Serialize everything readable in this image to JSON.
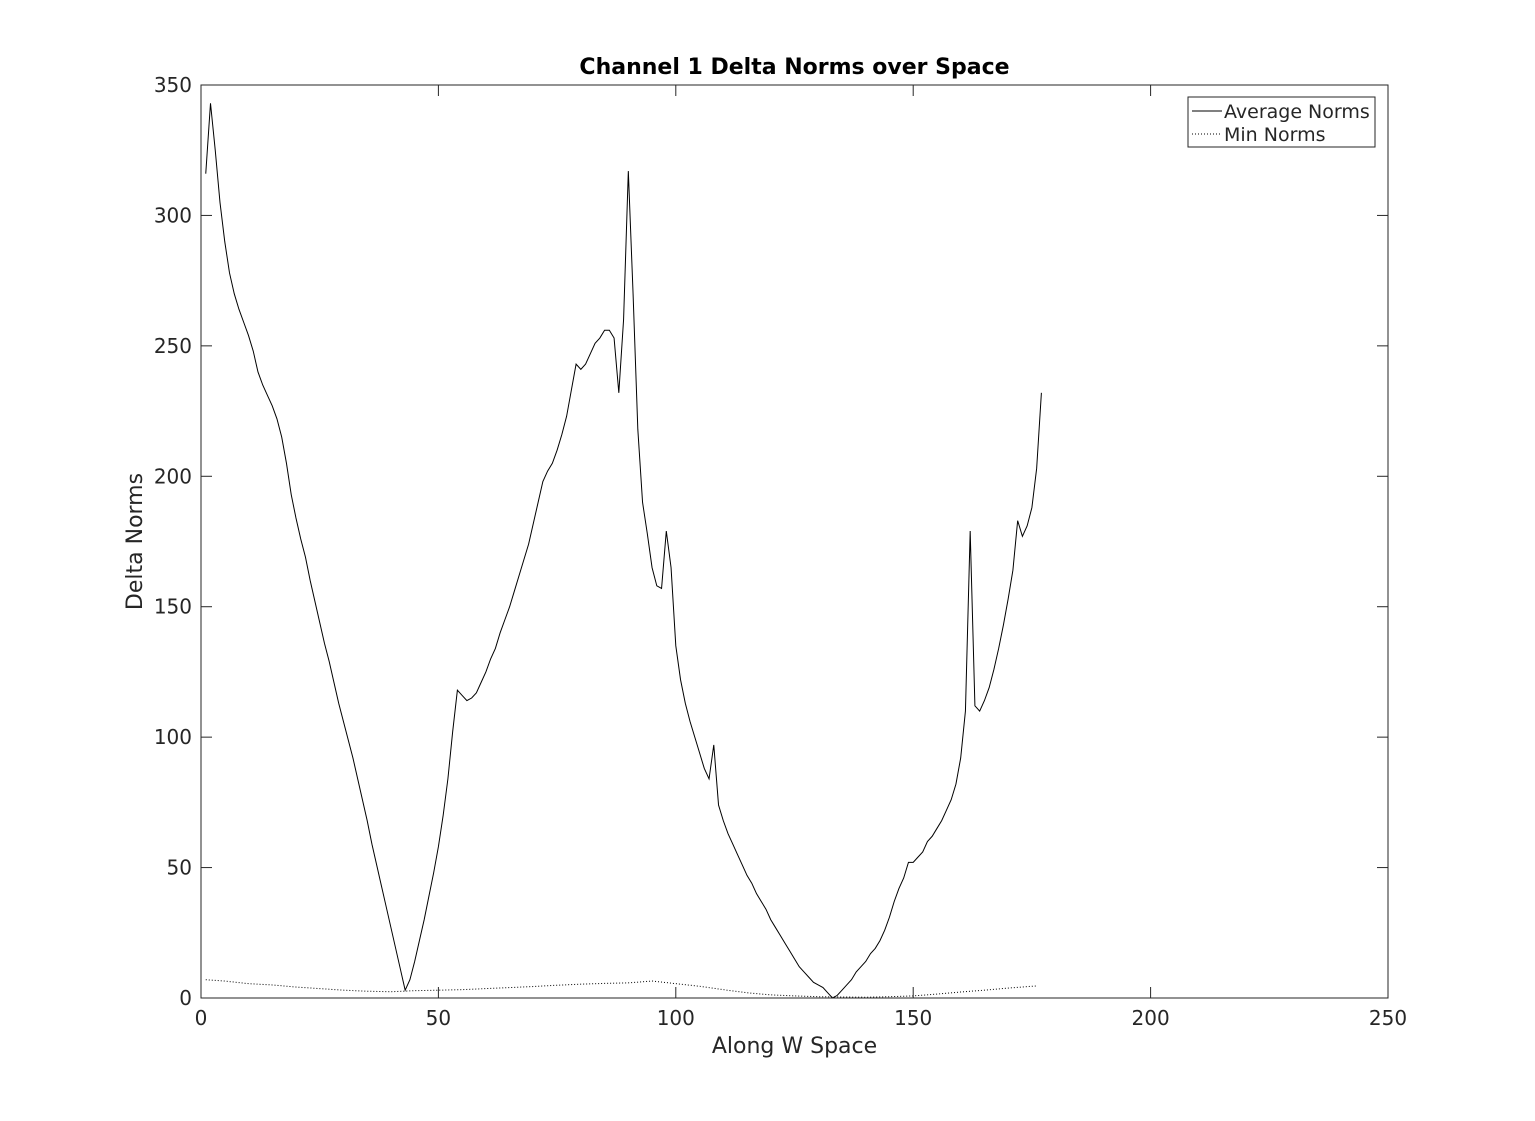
{
  "chart_data": {
    "type": "line",
    "title": "Channel 1 Delta Norms over Space",
    "xlabel": "Along W Space",
    "ylabel": "Delta Norms",
    "xlim": [
      0,
      250
    ],
    "ylim": [
      0,
      350
    ],
    "xticks": [
      0,
      50,
      100,
      150,
      200,
      250
    ],
    "yticks": [
      0,
      50,
      100,
      150,
      200,
      250,
      300,
      350
    ],
    "grid": false,
    "legend_position": "top-right",
    "series": [
      {
        "name": "Average Norms",
        "style": "solid",
        "color": "#000000",
        "points": [
          [
            1,
            316
          ],
          [
            2,
            343
          ],
          [
            3,
            325
          ],
          [
            4,
            305
          ],
          [
            5,
            290
          ],
          [
            6,
            278
          ],
          [
            7,
            270
          ],
          [
            8,
            264
          ],
          [
            9,
            259
          ],
          [
            10,
            254
          ],
          [
            11,
            248
          ],
          [
            12,
            240
          ],
          [
            13,
            235
          ],
          [
            14,
            231
          ],
          [
            15,
            227
          ],
          [
            16,
            222
          ],
          [
            17,
            215
          ],
          [
            18,
            205
          ],
          [
            19,
            193
          ],
          [
            20,
            184
          ],
          [
            21,
            176
          ],
          [
            22,
            169
          ],
          [
            23,
            160
          ],
          [
            24,
            152
          ],
          [
            25,
            144
          ],
          [
            26,
            136
          ],
          [
            27,
            129
          ],
          [
            28,
            121
          ],
          [
            29,
            113
          ],
          [
            30,
            106
          ],
          [
            31,
            99
          ],
          [
            32,
            92
          ],
          [
            33,
            84
          ],
          [
            34,
            76
          ],
          [
            35,
            68
          ],
          [
            36,
            59
          ],
          [
            37,
            51
          ],
          [
            38,
            43
          ],
          [
            39,
            35
          ],
          [
            40,
            27
          ],
          [
            41,
            19
          ],
          [
            42,
            11
          ],
          [
            43,
            3
          ],
          [
            44,
            7
          ],
          [
            45,
            14
          ],
          [
            46,
            22
          ],
          [
            47,
            30
          ],
          [
            48,
            39
          ],
          [
            49,
            48
          ],
          [
            50,
            58
          ],
          [
            51,
            70
          ],
          [
            52,
            84
          ],
          [
            53,
            102
          ],
          [
            54,
            118
          ],
          [
            55,
            116
          ],
          [
            56,
            114
          ],
          [
            57,
            115
          ],
          [
            58,
            117
          ],
          [
            59,
            121
          ],
          [
            60,
            125
          ],
          [
            61,
            130
          ],
          [
            62,
            134
          ],
          [
            63,
            140
          ],
          [
            64,
            145
          ],
          [
            65,
            150
          ],
          [
            66,
            156
          ],
          [
            67,
            162
          ],
          [
            68,
            168
          ],
          [
            69,
            174
          ],
          [
            70,
            182
          ],
          [
            71,
            190
          ],
          [
            72,
            198
          ],
          [
            73,
            202
          ],
          [
            74,
            205
          ],
          [
            75,
            210
          ],
          [
            76,
            216
          ],
          [
            77,
            223
          ],
          [
            78,
            233
          ],
          [
            79,
            243
          ],
          [
            80,
            241
          ],
          [
            81,
            243
          ],
          [
            82,
            247
          ],
          [
            83,
            251
          ],
          [
            84,
            253
          ],
          [
            85,
            256
          ],
          [
            86,
            256
          ],
          [
            87,
            253
          ],
          [
            88,
            232
          ],
          [
            89,
            260
          ],
          [
            90,
            317
          ],
          [
            91,
            270
          ],
          [
            92,
            218
          ],
          [
            93,
            190
          ],
          [
            94,
            178
          ],
          [
            95,
            165
          ],
          [
            96,
            158
          ],
          [
            97,
            157
          ],
          [
            98,
            179
          ],
          [
            99,
            165
          ],
          [
            100,
            135
          ],
          [
            101,
            122
          ],
          [
            102,
            113
          ],
          [
            103,
            106
          ],
          [
            104,
            100
          ],
          [
            105,
            94
          ],
          [
            106,
            88
          ],
          [
            107,
            84
          ],
          [
            108,
            97
          ],
          [
            109,
            74
          ],
          [
            110,
            68
          ],
          [
            111,
            63
          ],
          [
            112,
            59
          ],
          [
            113,
            55
          ],
          [
            114,
            51
          ],
          [
            115,
            47
          ],
          [
            116,
            44
          ],
          [
            117,
            40
          ],
          [
            118,
            37
          ],
          [
            119,
            34
          ],
          [
            120,
            30
          ],
          [
            121,
            27
          ],
          [
            122,
            24
          ],
          [
            123,
            21
          ],
          [
            124,
            18
          ],
          [
            125,
            15
          ],
          [
            126,
            12
          ],
          [
            127,
            10
          ],
          [
            128,
            8
          ],
          [
            129,
            6
          ],
          [
            130,
            5
          ],
          [
            131,
            4
          ],
          [
            132,
            2
          ],
          [
            133,
            0
          ],
          [
            134,
            1
          ],
          [
            135,
            3
          ],
          [
            136,
            5
          ],
          [
            137,
            7
          ],
          [
            138,
            10
          ],
          [
            139,
            12
          ],
          [
            140,
            14
          ],
          [
            141,
            17
          ],
          [
            142,
            19
          ],
          [
            143,
            22
          ],
          [
            144,
            26
          ],
          [
            145,
            31
          ],
          [
            146,
            37
          ],
          [
            147,
            42
          ],
          [
            148,
            46
          ],
          [
            149,
            52
          ],
          [
            150,
            52
          ],
          [
            151,
            54
          ],
          [
            152,
            56
          ],
          [
            153,
            60
          ],
          [
            154,
            62
          ],
          [
            155,
            65
          ],
          [
            156,
            68
          ],
          [
            157,
            72
          ],
          [
            158,
            76
          ],
          [
            159,
            82
          ],
          [
            160,
            92
          ],
          [
            161,
            110
          ],
          [
            162,
            179
          ],
          [
            163,
            112
          ],
          [
            164,
            110
          ],
          [
            165,
            114
          ],
          [
            166,
            119
          ],
          [
            167,
            126
          ],
          [
            168,
            134
          ],
          [
            169,
            143
          ],
          [
            170,
            153
          ],
          [
            171,
            164
          ],
          [
            172,
            183
          ],
          [
            173,
            177
          ],
          [
            174,
            181
          ],
          [
            175,
            188
          ],
          [
            176,
            203
          ],
          [
            177,
            232
          ]
        ]
      },
      {
        "name": "Min Norms",
        "style": "dotted",
        "color": "#000000",
        "points": [
          [
            1,
            7
          ],
          [
            5,
            6.5
          ],
          [
            10,
            5.5
          ],
          [
            15,
            5
          ],
          [
            20,
            4.2
          ],
          [
            25,
            3.6
          ],
          [
            30,
            3
          ],
          [
            35,
            2.6
          ],
          [
            40,
            2.4
          ],
          [
            45,
            2.8
          ],
          [
            50,
            3
          ],
          [
            55,
            3.2
          ],
          [
            60,
            3.6
          ],
          [
            65,
            4
          ],
          [
            70,
            4.4
          ],
          [
            75,
            4.9
          ],
          [
            80,
            5.3
          ],
          [
            85,
            5.6
          ],
          [
            90,
            5.8
          ],
          [
            95,
            6.5
          ],
          [
            100,
            5.5
          ],
          [
            105,
            4.5
          ],
          [
            110,
            3.2
          ],
          [
            115,
            2
          ],
          [
            120,
            1.2
          ],
          [
            125,
            0.8
          ],
          [
            130,
            0.5
          ],
          [
            135,
            0.4
          ],
          [
            140,
            0.3
          ],
          [
            145,
            0.5
          ],
          [
            150,
            0.8
          ],
          [
            155,
            1.5
          ],
          [
            160,
            2.3
          ],
          [
            165,
            3
          ],
          [
            170,
            3.8
          ],
          [
            175,
            4.5
          ],
          [
            176,
            4.6
          ]
        ]
      }
    ]
  }
}
